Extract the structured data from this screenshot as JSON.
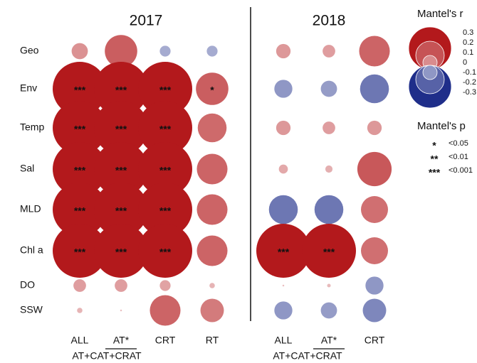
{
  "chart_data": {
    "type": "bubble_matrix",
    "rows": [
      "Geo",
      "Env",
      "Temp",
      "Sal",
      "MLD",
      "Chl a",
      "DO",
      "SSW"
    ],
    "colorscale": {
      "negative": "#1f2e8a",
      "positive": "#b3191c"
    },
    "panels": [
      {
        "title": "2017",
        "categories": [
          "ALL",
          "AT*",
          "CRT",
          "RT"
        ],
        "group_label": "AT+CAT+CRAT",
        "values": [
          [
            0.09,
            0.18,
            -0.06,
            -0.06
          ],
          [
            0.3,
            0.3,
            0.3,
            0.18
          ],
          [
            0.3,
            0.3,
            0.3,
            0.16
          ],
          [
            0.3,
            0.3,
            0.3,
            0.17
          ],
          [
            0.3,
            0.3,
            0.3,
            0.17
          ],
          [
            0.3,
            0.3,
            0.3,
            0.17
          ],
          [
            0.07,
            0.07,
            0.06,
            0.03
          ],
          [
            0.03,
            0.01,
            0.17,
            0.13
          ]
        ],
        "annotations": [
          [
            null,
            null,
            null,
            null
          ],
          [
            "***",
            "***",
            "***",
            "*"
          ],
          [
            "***",
            "***",
            "***",
            null
          ],
          [
            "***",
            "***",
            "***",
            null
          ],
          [
            "***",
            "***",
            "***",
            null
          ],
          [
            "***",
            "***",
            "***",
            null
          ],
          [
            null,
            null,
            null,
            null
          ],
          [
            null,
            null,
            null,
            null
          ]
        ]
      },
      {
        "title": "2018",
        "categories": [
          "ALL",
          "AT*",
          "CRT"
        ],
        "group_label": "AT+CAT+CRAT",
        "values": [
          [
            0.08,
            0.07,
            0.17
          ],
          [
            -0.1,
            -0.09,
            -0.16
          ],
          [
            0.08,
            0.07,
            0.08
          ],
          [
            0.05,
            0.04,
            0.19
          ],
          [
            -0.16,
            -0.16,
            0.15
          ],
          [
            0.3,
            0.3,
            0.15
          ],
          [
            0.01,
            0.02,
            -0.1
          ],
          [
            -0.1,
            -0.09,
            -0.13
          ]
        ],
        "annotations": [
          [
            null,
            null,
            null
          ],
          [
            null,
            null,
            null
          ],
          [
            null,
            null,
            null
          ],
          [
            null,
            null,
            null
          ],
          [
            null,
            null,
            null
          ],
          [
            "***",
            "***",
            null
          ],
          [
            null,
            null,
            null
          ],
          [
            null,
            null,
            null
          ]
        ]
      }
    ],
    "legend_r": {
      "title": "Mantel's r",
      "ticks": [
        0.3,
        0.2,
        0.1,
        0.0,
        -0.1,
        -0.2,
        -0.3
      ]
    },
    "legend_p": {
      "title": "Mantel's p",
      "symbols": [
        "*",
        "**",
        "***"
      ],
      "labels": [
        "<0.05",
        "<0.01",
        "<0.001"
      ]
    }
  }
}
